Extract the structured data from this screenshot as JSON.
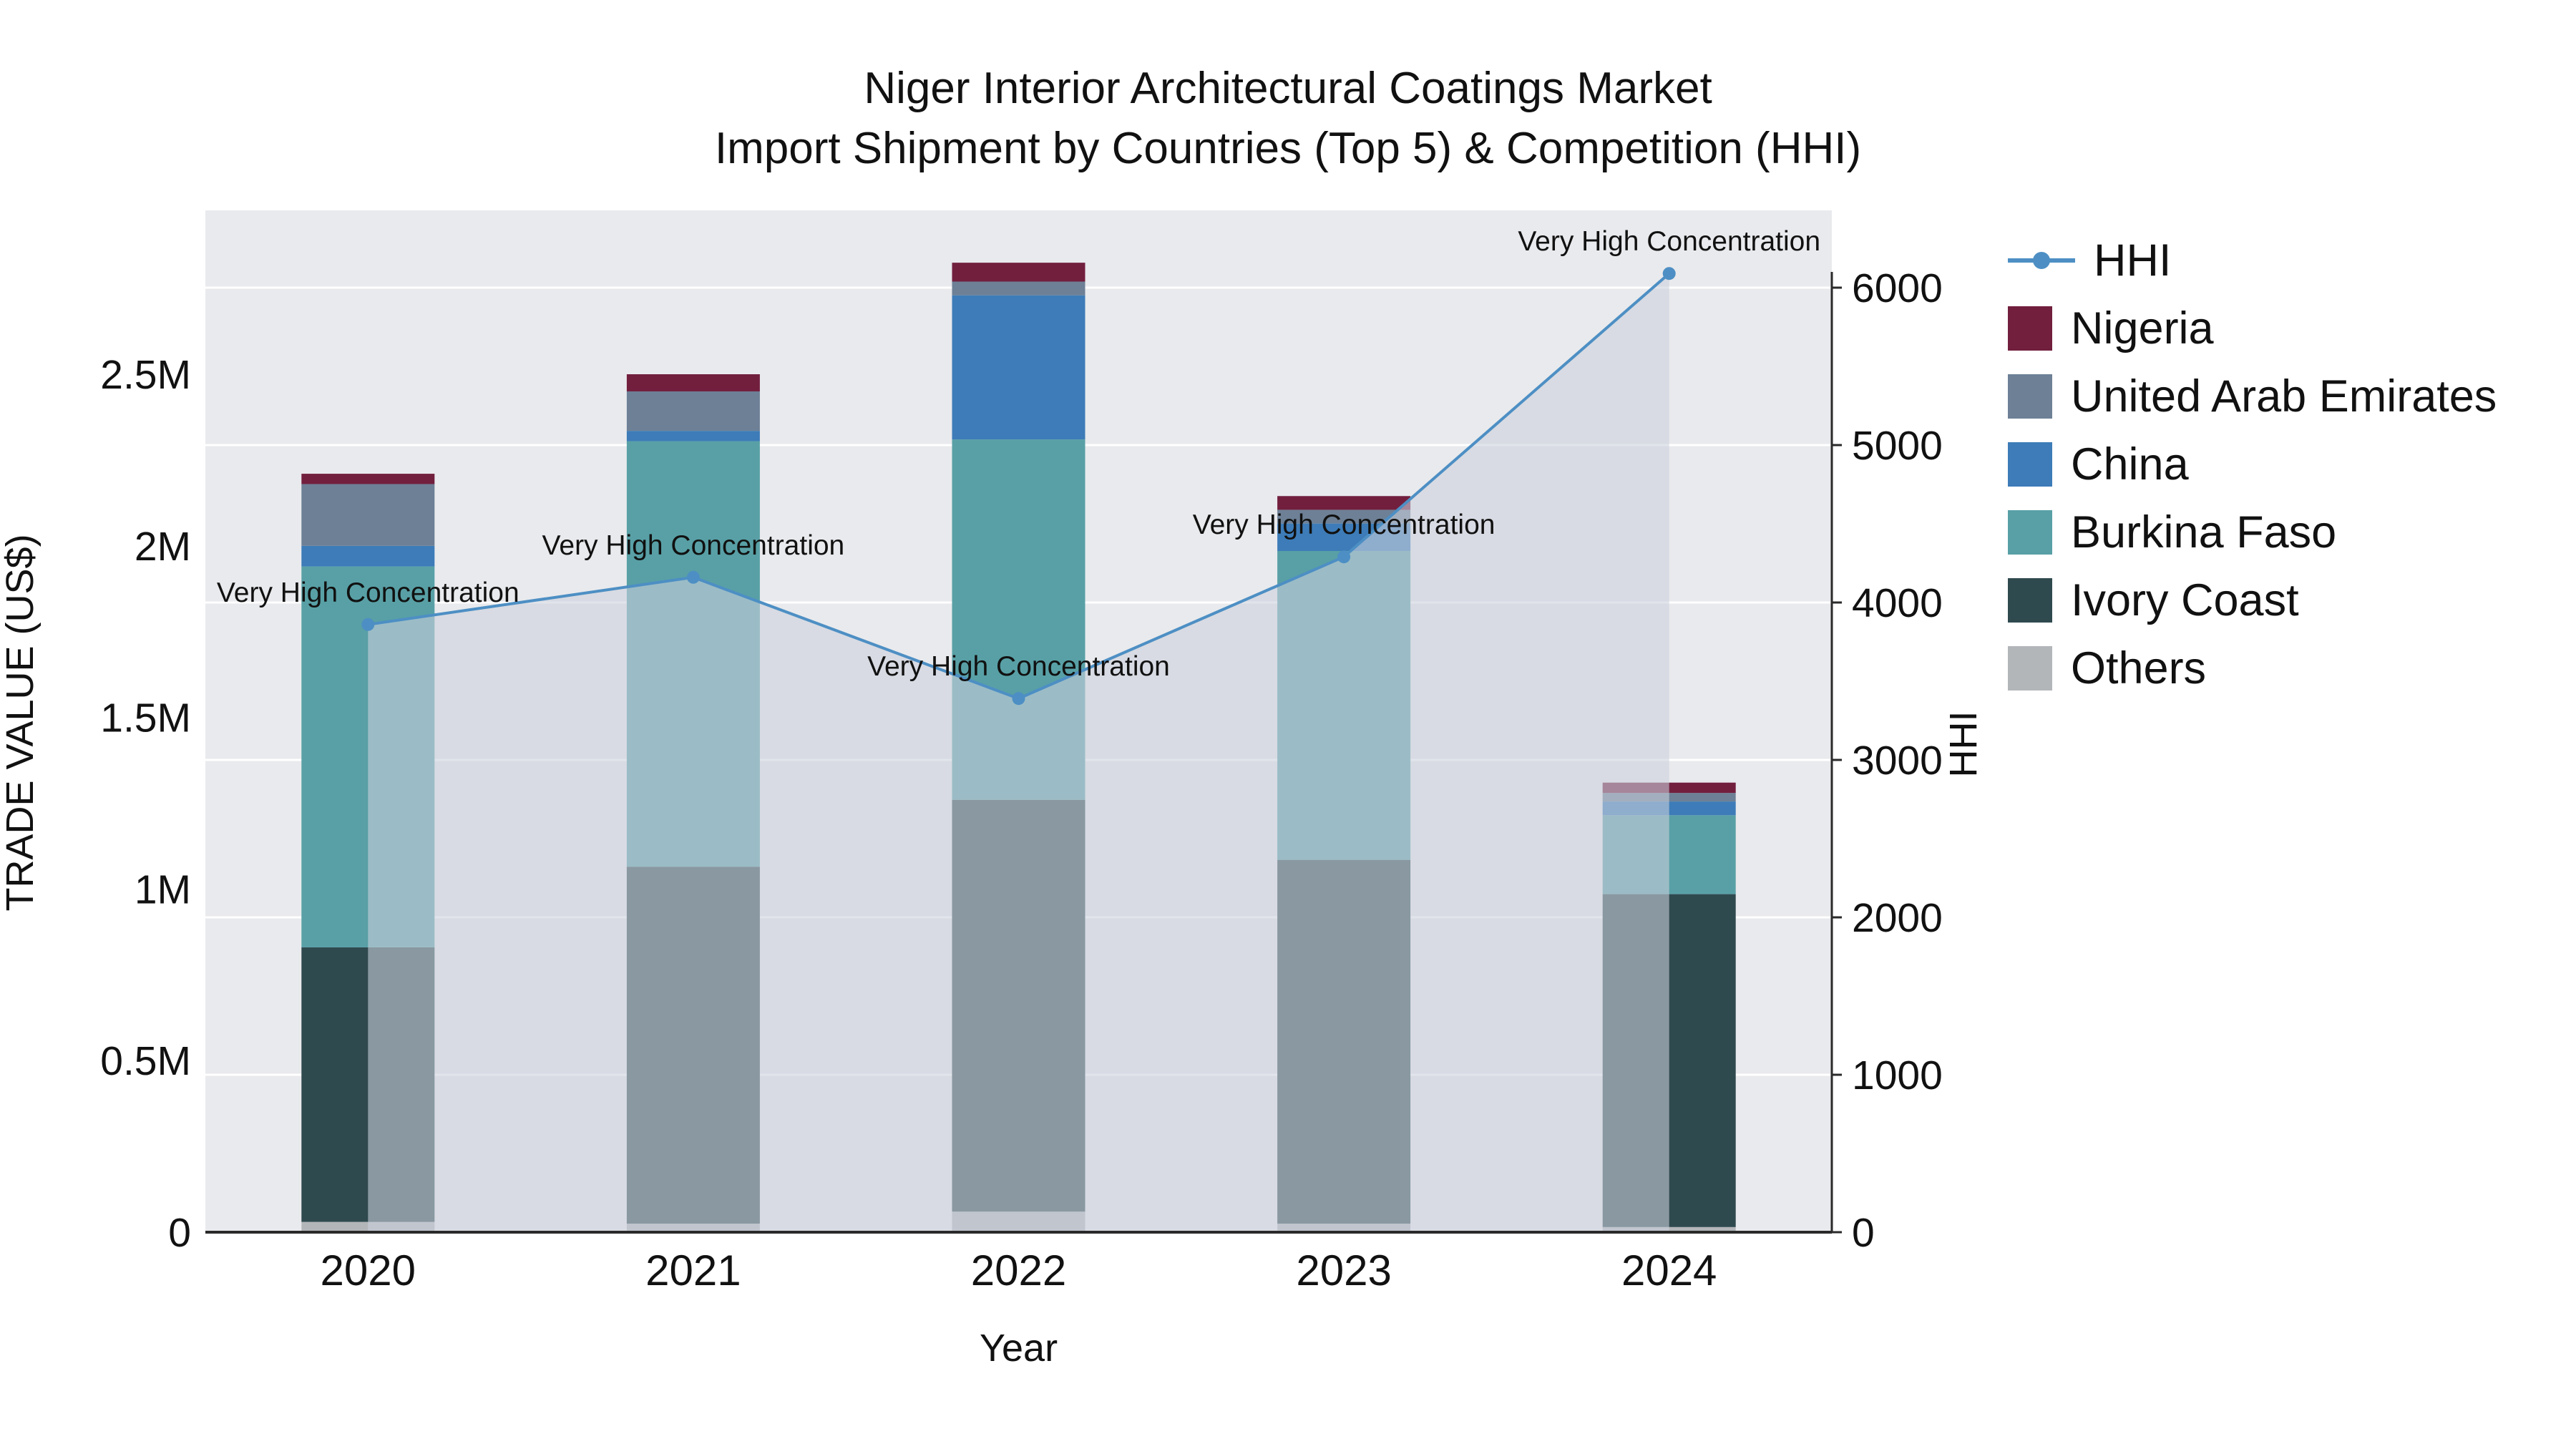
{
  "title": {
    "line1": "Niger Interior Architectural Coatings Market",
    "line2": "Import Shipment by Countries (Top 5) & Competition (HHI)"
  },
  "chart_data": {
    "type": "bar",
    "subtype": "stacked-bars-with-line-area-overlay",
    "categories": [
      "2020",
      "2021",
      "2022",
      "2023",
      "2024"
    ],
    "bar_series_bottom_to_top": [
      {
        "name": "Others",
        "color": "#b3b6b9",
        "values": [
          30000,
          25000,
          60000,
          25000,
          15000
        ]
      },
      {
        "name": "Ivory Coast",
        "color": "#2f4a4f",
        "values": [
          800000,
          1040000,
          1200000,
          1060000,
          970000
        ]
      },
      {
        "name": "Burkina Faso",
        "color": "#58a0a6",
        "values": [
          1110000,
          1240000,
          1050000,
          900000,
          230000
        ]
      },
      {
        "name": "China",
        "color": "#3d7cb8",
        "values": [
          60000,
          30000,
          420000,
          80000,
          40000
        ]
      },
      {
        "name": "United Arab Emirates",
        "color": "#6d8096",
        "values": [
          180000,
          115000,
          40000,
          40000,
          25000
        ]
      },
      {
        "name": "Nigeria",
        "color": "#721f3e",
        "values": [
          30000,
          50000,
          55000,
          40000,
          30000
        ]
      }
    ],
    "bar_totals": [
      2210000,
      2500000,
      2825000,
      2145000,
      1310000
    ],
    "line_series": {
      "name": "HHI",
      "color": "#4d8fc4",
      "area_fill": "rgba(203,209,221,0.58)",
      "axis": "right",
      "values": [
        3860,
        4160,
        3390,
        4290,
        6090
      ]
    },
    "annotations": [
      "Very High Concentration",
      "Very High Concentration",
      "Very High Concentration",
      "Very High Concentration",
      "Very High Concentration"
    ],
    "left_axis": {
      "title": "TRADE VALUE (US$)",
      "tick_values": [
        0,
        500000,
        1000000,
        1500000,
        2000000,
        2500000
      ],
      "tick_labels": [
        "0",
        "0.5M",
        "1M",
        "1.5M",
        "2M",
        "2.5M"
      ],
      "range": [
        0,
        2980000
      ]
    },
    "right_axis": {
      "title": "HHI",
      "tick_values": [
        0,
        1000,
        2000,
        3000,
        4000,
        5000,
        6000
      ],
      "tick_labels": [
        "0",
        "1000",
        "2000",
        "3000",
        "4000",
        "5000",
        "6000"
      ],
      "range": [
        0,
        6490
      ]
    },
    "x_axis": {
      "title": "Year"
    },
    "plot_background": "#e9eaed",
    "grid": "on",
    "legend_position": "right",
    "legend": [
      {
        "label": "HHI",
        "color": "#4d8fc4",
        "marker": "line"
      },
      {
        "label": "Nigeria",
        "color": "#721f3e",
        "marker": "square"
      },
      {
        "label": "United Arab Emirates",
        "color": "#6d8096",
        "marker": "square"
      },
      {
        "label": "China",
        "color": "#3d7cb8",
        "marker": "square"
      },
      {
        "label": "Burkina Faso",
        "color": "#58a0a6",
        "marker": "square"
      },
      {
        "label": "Ivory Coast",
        "color": "#2f4a4f",
        "marker": "square"
      },
      {
        "label": "Others",
        "color": "#b3b6b9",
        "marker": "square"
      }
    ]
  }
}
